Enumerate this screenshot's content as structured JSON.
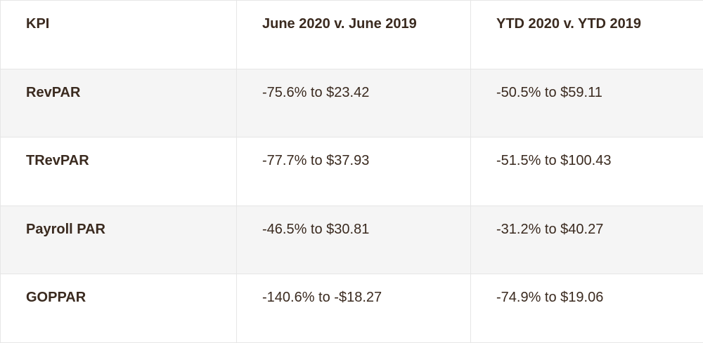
{
  "table": {
    "headers": [
      "KPI",
      "June 2020 v. June 2019",
      "YTD 2020 v. YTD 2019"
    ],
    "rows": [
      {
        "kpi": "RevPAR",
        "june": "-75.6% to $23.42",
        "ytd": "-50.5% to $59.11"
      },
      {
        "kpi": "TRevPAR",
        "june": "-77.7% to $37.93",
        "ytd": "-51.5% to $100.43"
      },
      {
        "kpi": "Payroll PAR",
        "june": "-46.5% to $30.81",
        "ytd": "-31.2% to $40.27"
      },
      {
        "kpi": "GOPPAR",
        "june": "-140.6% to -$18.27",
        "ytd": "-74.9% to $19.06"
      }
    ]
  },
  "colors": {
    "text": "#3a2a1f",
    "row_shade": "#f5f5f5",
    "border": "#e6e6e6"
  }
}
